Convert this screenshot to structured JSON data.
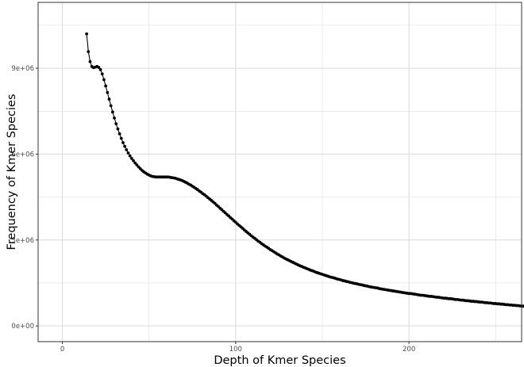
{
  "chart_data": {
    "type": "line",
    "title": "",
    "xlabel": "Depth of Kmer Species",
    "ylabel": "Frequency of Kmer Species",
    "xlim": [
      -14,
      265
    ],
    "ylim": [
      -550000,
      11300000
    ],
    "x_ticks": [
      0,
      100,
      200
    ],
    "x_tick_labels": [
      "0",
      "100",
      "200"
    ],
    "y_ticks": [
      0,
      3000000,
      6000000,
      9000000
    ],
    "y_tick_labels": [
      "0e+00",
      "3e+06",
      "6e+06",
      "9e+06"
    ],
    "grid": true,
    "legend": "none",
    "colors": {
      "line": "#000000",
      "point": "#000000",
      "grid": "#dadada",
      "panel_border": "#333333"
    },
    "series": [
      {
        "x_start": 14,
        "x_step": 1,
        "values": [
          10200000,
          9580000,
          9230000,
          9060000,
          9020000,
          9040000,
          9060000,
          9030000,
          8950000,
          8800000,
          8600000,
          8380000,
          8150000,
          7920000,
          7690000,
          7470000,
          7260000,
          7060000,
          6880000,
          6710000,
          6550000,
          6400000,
          6270000,
          6150000,
          6040000,
          5940000,
          5850000,
          5770000,
          5690000,
          5620000,
          5550000,
          5490000,
          5430000,
          5380000,
          5340000,
          5300000,
          5270000,
          5240000,
          5220000,
          5210000,
          5200000,
          5200000,
          5200000,
          5200000,
          5200000,
          5200000,
          5200000,
          5200000,
          5190000,
          5180000,
          5170000,
          5160000,
          5140000,
          5120000,
          5100000,
          5080000,
          5050000,
          5020000,
          4990000,
          4950000,
          4920000,
          4880000,
          4840000,
          4800000,
          4760000,
          4710000,
          4670000,
          4620000,
          4580000,
          4530000,
          4480000,
          4430000,
          4380000,
          4330000,
          4280000,
          4220000,
          4170000,
          4110000,
          4060000,
          4000000,
          3950000,
          3890000,
          3840000,
          3780000,
          3730000,
          3670000,
          3620000,
          3560000,
          3510000,
          3460000,
          3410000,
          3350000,
          3300000,
          3250000,
          3200000,
          3150000,
          3100000,
          3060000,
          3010000,
          2960000,
          2920000,
          2870000,
          2830000,
          2790000,
          2750000,
          2710000,
          2660000,
          2630000,
          2590000,
          2550000,
          2510000,
          2480000,
          2440000,
          2410000,
          2370000,
          2340000,
          2310000,
          2280000,
          2250000,
          2220000,
          2190000,
          2160000,
          2130000,
          2100000,
          2080000,
          2050000,
          2030000,
          2000000,
          1980000,
          1950000,
          1930000,
          1910000,
          1880000,
          1860000,
          1840000,
          1820000,
          1800000,
          1780000,
          1760000,
          1740000,
          1720000,
          1700000,
          1690000,
          1670000,
          1650000,
          1630000,
          1620000,
          1600000,
          1580000,
          1570000,
          1550000,
          1540000,
          1520000,
          1510000,
          1490000,
          1480000,
          1470000,
          1450000,
          1440000,
          1430000,
          1410000,
          1400000,
          1390000,
          1370000,
          1360000,
          1350000,
          1340000,
          1330000,
          1320000,
          1300000,
          1290000,
          1280000,
          1270000,
          1260000,
          1250000,
          1240000,
          1230000,
          1220000,
          1210000,
          1200000,
          1190000,
          1180000,
          1170000,
          1160000,
          1150000,
          1140000,
          1130000,
          1130000,
          1120000,
          1110000,
          1100000,
          1090000,
          1080000,
          1070000,
          1070000,
          1060000,
          1050000,
          1040000,
          1030000,
          1030000,
          1020000,
          1010000,
          1000000,
          1000000,
          990000,
          980000,
          970000,
          970000,
          960000,
          950000,
          950000,
          940000,
          930000,
          920000,
          920000,
          910000,
          900000,
          900000,
          890000,
          880000,
          880000,
          870000,
          860000,
          860000,
          850000,
          850000,
          840000,
          830000,
          830000,
          820000,
          810000,
          810000,
          800000,
          800000,
          790000,
          780000,
          780000,
          770000,
          770000,
          760000,
          760000,
          750000,
          740000,
          740000,
          730000,
          730000,
          720000,
          720000,
          710000,
          710000,
          700000,
          690000,
          690000,
          680000
        ]
      }
    ]
  }
}
